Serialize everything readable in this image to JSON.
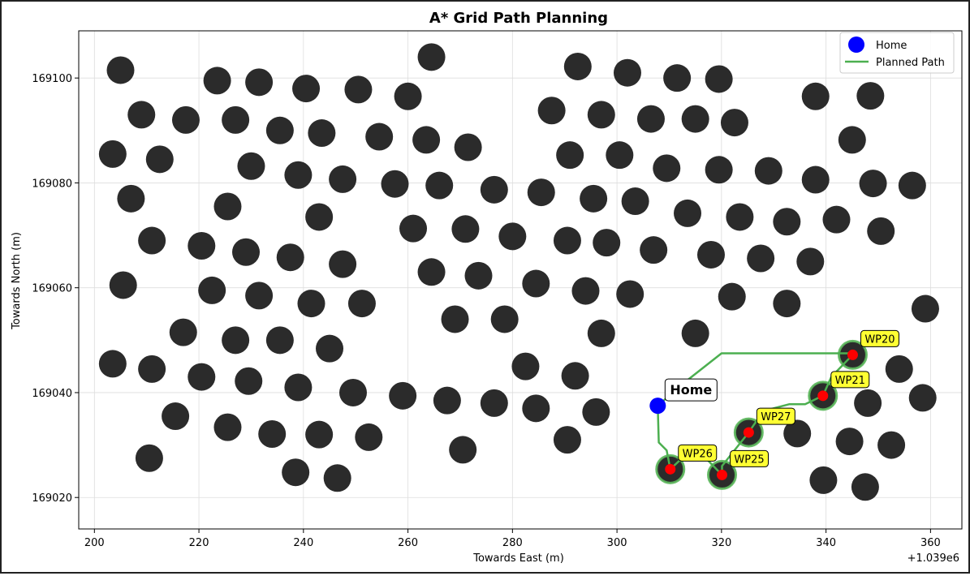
{
  "chart_data": {
    "type": "scatter",
    "title": "A* Grid Path Planning",
    "xlabel": "Towards East (m)",
    "ylabel": "Towards North (m)",
    "x_offset_label": "+1.039e6",
    "xlim": [
      197,
      366
    ],
    "ylim": [
      169014,
      169109
    ],
    "xticks": [
      200,
      220,
      240,
      260,
      280,
      300,
      320,
      340,
      360
    ],
    "yticks": [
      169020,
      169040,
      169060,
      169080,
      169100
    ],
    "grid": true,
    "legend_position": "top-right",
    "legend": [
      {
        "label": "Home",
        "marker": "circle",
        "color": "#0000ff"
      },
      {
        "label": "Planned Path",
        "marker": "line",
        "color": "#4caf50"
      }
    ],
    "colors": {
      "obstacle": "#2b2b2b",
      "home": "#0000ff",
      "path": "#4caf50",
      "waypoint": "#ff0000",
      "waypoint_halo": "#5cb85c",
      "label_box": "#ffff33"
    },
    "home": {
      "x": 307.8,
      "y": 169037.5,
      "label": "Home"
    },
    "waypoints": [
      {
        "name": "WP20",
        "x": 345.1,
        "y": 169047.2
      },
      {
        "name": "WP21",
        "x": 339.4,
        "y": 169039.4
      },
      {
        "name": "WP27",
        "x": 325.2,
        "y": 169032.4
      },
      {
        "name": "WP26",
        "x": 310.2,
        "y": 169025.4
      },
      {
        "name": "WP25",
        "x": 320.1,
        "y": 169024.3
      }
    ],
    "path": [
      [
        307.8,
        169037.5
      ],
      [
        313,
        169042
      ],
      [
        320,
        169047.5
      ],
      [
        345.1,
        169047.5
      ],
      [
        345.1,
        169047.2
      ],
      [
        341,
        169043
      ],
      [
        339.4,
        169039.4
      ],
      [
        336,
        169037.8
      ],
      [
        333,
        169037.8
      ],
      [
        328,
        169036.5
      ],
      [
        325.2,
        169032.4
      ],
      [
        320.1,
        169026
      ],
      [
        320.1,
        169024.3
      ],
      [
        317,
        169027.5
      ],
      [
        313,
        169028
      ],
      [
        310.2,
        169025.4
      ],
      [
        309.5,
        169029
      ],
      [
        308,
        169030.5
      ],
      [
        307.8,
        169037.5
      ]
    ],
    "obstacles": [
      [
        205,
        169101.5
      ],
      [
        209,
        169093
      ],
      [
        203.5,
        169085.5
      ],
      [
        212.5,
        169084.5
      ],
      [
        207,
        169077
      ],
      [
        211,
        169069
      ],
      [
        205.5,
        169060.5
      ],
      [
        203.5,
        169045.5
      ],
      [
        211,
        169044.5
      ],
      [
        215.5,
        169035.5
      ],
      [
        210.5,
        169027.5
      ],
      [
        217.5,
        169092
      ],
      [
        223.5,
        169099.5
      ],
      [
        231.5,
        169099.2
      ],
      [
        227,
        169092
      ],
      [
        235.5,
        169090
      ],
      [
        240.5,
        169098
      ],
      [
        243.5,
        169089.5
      ],
      [
        250.5,
        169097.8
      ],
      [
        254.5,
        169088.8
      ],
      [
        260,
        169096.5
      ],
      [
        263.5,
        169088.2
      ],
      [
        264.5,
        169104
      ],
      [
        230,
        169083.2
      ],
      [
        239,
        169081.5
      ],
      [
        247.5,
        169080.7
      ],
      [
        257.5,
        169079.8
      ],
      [
        266,
        169079.5
      ],
      [
        271.5,
        169086.8
      ],
      [
        276.5,
        169078.7
      ],
      [
        285.5,
        169078.2
      ],
      [
        225.5,
        169075.5
      ],
      [
        243,
        169073.5
      ],
      [
        220.5,
        169068
      ],
      [
        229,
        169066.8
      ],
      [
        237.5,
        169065.8
      ],
      [
        247.5,
        169064.5
      ],
      [
        261,
        169071.3
      ],
      [
        271,
        169071.2
      ],
      [
        280,
        169069.8
      ],
      [
        222.5,
        169059.5
      ],
      [
        231.5,
        169058.5
      ],
      [
        241.5,
        169057
      ],
      [
        251.2,
        169057
      ],
      [
        264.5,
        169063
      ],
      [
        273.5,
        169062.3
      ],
      [
        284.5,
        169060.8
      ],
      [
        217,
        169051.5
      ],
      [
        227,
        169050
      ],
      [
        235.5,
        169050
      ],
      [
        245,
        169048.4
      ],
      [
        220.5,
        169043
      ],
      [
        229.5,
        169042.2
      ],
      [
        239,
        169041
      ],
      [
        249.5,
        169040
      ],
      [
        259,
        169039.4
      ],
      [
        267.5,
        169038.5
      ],
      [
        276.5,
        169038
      ],
      [
        269,
        169054
      ],
      [
        278.5,
        169054
      ],
      [
        225.5,
        169033.4
      ],
      [
        234,
        169032.1
      ],
      [
        243,
        169032
      ],
      [
        252.5,
        169031.5
      ],
      [
        270.5,
        169029.1
      ],
      [
        238.5,
        169024.8
      ],
      [
        246.5,
        169023.7
      ],
      [
        292.5,
        169102.2
      ],
      [
        302,
        169101
      ],
      [
        311.5,
        169100
      ],
      [
        319.5,
        169099.8
      ],
      [
        287.5,
        169093.8
      ],
      [
        297,
        169093
      ],
      [
        306.5,
        169092.2
      ],
      [
        315,
        169092.2
      ],
      [
        322.5,
        169091.5
      ],
      [
        338,
        169096.5
      ],
      [
        348.5,
        169096.6
      ],
      [
        345,
        169088.2
      ],
      [
        291,
        169085.3
      ],
      [
        300.5,
        169085.3
      ],
      [
        309.5,
        169082.8
      ],
      [
        319.5,
        169082.5
      ],
      [
        329,
        169082.3
      ],
      [
        338,
        169080.6
      ],
      [
        349,
        169079.9
      ],
      [
        356.5,
        169079.5
      ],
      [
        295.5,
        169077
      ],
      [
        303.5,
        169076.5
      ],
      [
        313.5,
        169074.2
      ],
      [
        323.5,
        169073.5
      ],
      [
        332.5,
        169072.6
      ],
      [
        342,
        169073
      ],
      [
        350.5,
        169070.8
      ],
      [
        290.5,
        169069
      ],
      [
        298,
        169068.6
      ],
      [
        307,
        169067.2
      ],
      [
        318,
        169066.3
      ],
      [
        327.5,
        169065.6
      ],
      [
        337,
        169065
      ],
      [
        294,
        169059.4
      ],
      [
        302.5,
        169058.8
      ],
      [
        322,
        169058.3
      ],
      [
        332.5,
        169057
      ],
      [
        359,
        169056
      ],
      [
        297,
        169051.3
      ],
      [
        315,
        169051.3
      ],
      [
        282.5,
        169045
      ],
      [
        292,
        169043.2
      ],
      [
        284.5,
        169037
      ],
      [
        296,
        169036.3
      ],
      [
        290.5,
        169031
      ],
      [
        348,
        169038
      ],
      [
        354,
        169044.5
      ],
      [
        358.5,
        169039
      ],
      [
        334.5,
        169032.2
      ],
      [
        344.5,
        169030.7
      ],
      [
        352.5,
        169030
      ],
      [
        339.5,
        169023.3
      ],
      [
        347.5,
        169022
      ]
    ]
  }
}
